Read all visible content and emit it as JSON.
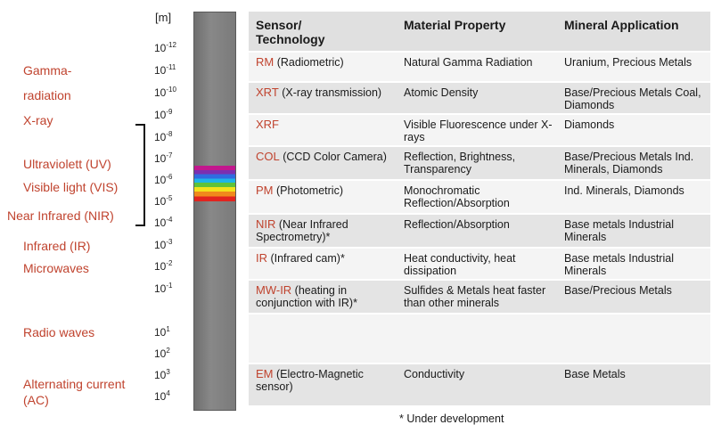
{
  "unit": "[m]",
  "bands": [
    {
      "label": "Gamma-"
    },
    {
      "label": "radiation"
    },
    {
      "label": "X-ray"
    },
    {
      "label": "Ultraviolett (UV)"
    },
    {
      "label": "Visible light (VIS)"
    },
    {
      "label": "Near Infrared (NIR)"
    },
    {
      "label": "Infrared (IR)"
    },
    {
      "label": "Microwaves"
    },
    {
      "label": "Radio waves"
    },
    {
      "label": "Alternating current"
    },
    {
      "label": "(AC)"
    }
  ],
  "ticks": [
    {
      "base": "10",
      "exp": "-12"
    },
    {
      "base": "10",
      "exp": "-11"
    },
    {
      "base": "10",
      "exp": "-10"
    },
    {
      "base": "10",
      "exp": "-9"
    },
    {
      "base": "10",
      "exp": "-8"
    },
    {
      "base": "10",
      "exp": "-7"
    },
    {
      "base": "10",
      "exp": "-6"
    },
    {
      "base": "10",
      "exp": "-5"
    },
    {
      "base": "10",
      "exp": "-4"
    },
    {
      "base": "10",
      "exp": "-3"
    },
    {
      "base": "10",
      "exp": "-2"
    },
    {
      "base": "10",
      "exp": "-1"
    },
    {
      "base": "10",
      "exp": "1"
    },
    {
      "base": "10",
      "exp": "2"
    },
    {
      "base": "10",
      "exp": "3"
    },
    {
      "base": "10",
      "exp": "4"
    }
  ],
  "table": {
    "headers": [
      "Sensor/\nTechnology",
      "Material Property",
      "Mineral Application"
    ],
    "rows": [
      {
        "abbr": "RM",
        "rest": " (Radiometric)",
        "property": "Natural Gamma Radiation",
        "application": "Uranium, Precious Metals"
      },
      {
        "abbr": "XRT",
        "rest": " (X-ray transmission)",
        "property": "Atomic Density",
        "application": "Base/Precious Metals Coal, Diamonds"
      },
      {
        "abbr": "XRF",
        "rest": "",
        "property": "Visible Fluorescence under X-rays",
        "application": "Diamonds"
      },
      {
        "abbr": "COL",
        "rest": " (CCD Color Camera)",
        "property": "Reflection, Brightness, Transparency",
        "application": "Base/Precious Metals Ind. Minerals, Diamonds"
      },
      {
        "abbr": "PM",
        "rest": " (Photometric)",
        "property": "Monochromatic Reflection/Absorption",
        "application": "Ind. Minerals, Diamonds"
      },
      {
        "abbr": "NIR",
        "rest": " (Near Infrared Spectrometry)*",
        "property": "Reflection/Absorption",
        "application": "Base metals Industrial Minerals"
      },
      {
        "abbr": "IR",
        "rest": " (Infrared cam)*",
        "property": "Heat conductivity, heat dissipation",
        "application": "Base metals Industrial Minerals"
      },
      {
        "abbr": "MW-IR",
        "rest": " (heating in conjunction with IR)*",
        "property": "Sulfides & Metals heat faster than other minerals",
        "application": "Base/Precious Metals"
      },
      {
        "abbr": "",
        "rest": "",
        "property": "",
        "application": ""
      },
      {
        "abbr": "EM",
        "rest": " (Electro-Magnetic sensor)",
        "property": "Conductivity",
        "application": "Base Metals"
      }
    ]
  },
  "footnote": "* Under development",
  "colors": {
    "accent": "#c0432e",
    "row_dark": "#e4e4e4",
    "row_light": "#f4f4f4",
    "header": "#e0e0e0"
  }
}
